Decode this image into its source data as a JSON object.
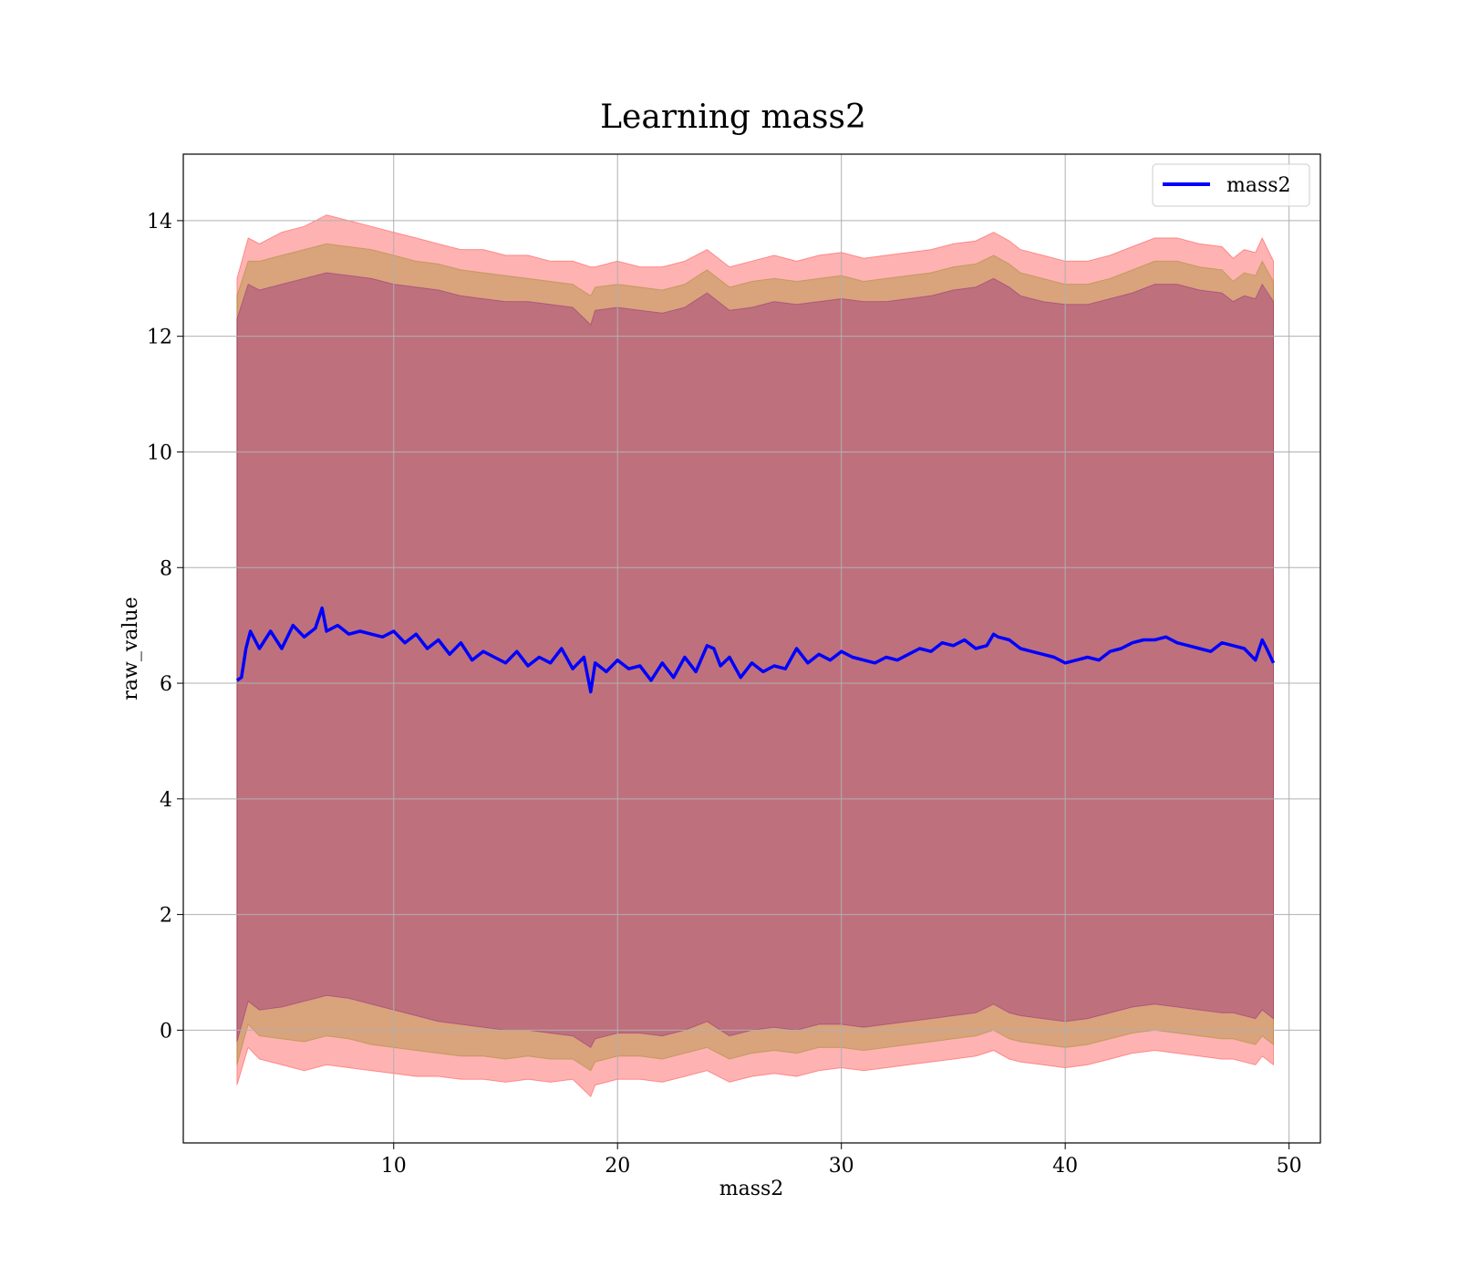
{
  "chart_data": {
    "type": "line",
    "title": "Learning mass2",
    "xlabel": "mass2",
    "ylabel": "raw_value",
    "xlim": [
      0.6,
      51.4
    ],
    "ylim": [
      -1.95,
      15.15
    ],
    "xticks": [
      10,
      20,
      30,
      40,
      50
    ],
    "yticks": [
      0,
      2,
      4,
      6,
      8,
      10,
      12,
      14
    ],
    "grid": true,
    "legend_position": "top-right",
    "series": [
      {
        "name": "mass2",
        "color": "#0000ff",
        "x": [
          3.0,
          3.2,
          3.4,
          3.6,
          4.0,
          4.5,
          5.0,
          5.5,
          6.0,
          6.5,
          6.8,
          7.0,
          7.5,
          8.0,
          8.5,
          9.0,
          9.5,
          10.0,
          10.5,
          11.0,
          11.5,
          12.0,
          12.5,
          13.0,
          13.5,
          14.0,
          14.5,
          15.0,
          15.5,
          16.0,
          16.5,
          17.0,
          17.5,
          18.0,
          18.5,
          18.8,
          19.0,
          19.5,
          20.0,
          20.5,
          21.0,
          21.5,
          22.0,
          22.5,
          23.0,
          23.5,
          24.0,
          24.3,
          24.6,
          25.0,
          25.5,
          26.0,
          26.5,
          27.0,
          27.5,
          28.0,
          28.5,
          29.0,
          29.5,
          30.0,
          30.5,
          31.0,
          31.5,
          32.0,
          32.5,
          33.0,
          33.5,
          34.0,
          34.5,
          35.0,
          35.5,
          36.0,
          36.5,
          36.8,
          37.0,
          37.5,
          38.0,
          38.5,
          39.0,
          39.5,
          40.0,
          40.5,
          41.0,
          41.5,
          42.0,
          42.5,
          43.0,
          43.5,
          44.0,
          44.5,
          45.0,
          45.5,
          46.0,
          46.5,
          47.0,
          47.5,
          48.0,
          48.5,
          48.8,
          49.0,
          49.3
        ],
        "y": [
          6.05,
          6.1,
          6.6,
          6.9,
          6.6,
          6.9,
          6.6,
          7.0,
          6.8,
          6.95,
          7.3,
          6.9,
          7.0,
          6.85,
          6.9,
          6.85,
          6.8,
          6.9,
          6.7,
          6.85,
          6.6,
          6.75,
          6.5,
          6.7,
          6.4,
          6.55,
          6.45,
          6.35,
          6.55,
          6.3,
          6.45,
          6.35,
          6.6,
          6.25,
          6.45,
          5.85,
          6.35,
          6.2,
          6.4,
          6.25,
          6.3,
          6.05,
          6.35,
          6.1,
          6.45,
          6.2,
          6.65,
          6.6,
          6.3,
          6.45,
          6.1,
          6.35,
          6.2,
          6.3,
          6.25,
          6.6,
          6.35,
          6.5,
          6.4,
          6.55,
          6.45,
          6.4,
          6.35,
          6.45,
          6.4,
          6.5,
          6.6,
          6.55,
          6.7,
          6.65,
          6.75,
          6.6,
          6.65,
          6.85,
          6.8,
          6.75,
          6.6,
          6.55,
          6.5,
          6.45,
          6.35,
          6.4,
          6.45,
          6.4,
          6.55,
          6.6,
          6.7,
          6.75,
          6.75,
          6.8,
          6.7,
          6.65,
          6.6,
          6.55,
          6.7,
          6.65,
          6.6,
          6.4,
          6.75,
          6.6,
          6.35
        ]
      }
    ],
    "bands": [
      {
        "color": "#ff0000",
        "opacity": 0.3,
        "x": [
          3.0,
          3.5,
          4.0,
          5.0,
          6.0,
          7.0,
          8.0,
          9.0,
          10.0,
          11.0,
          12.0,
          13.0,
          14.0,
          15.0,
          16.0,
          17.0,
          18.0,
          18.8,
          19.0,
          20.0,
          21.0,
          22.0,
          23.0,
          24.0,
          25.0,
          26.0,
          27.0,
          28.0,
          29.0,
          30.0,
          31.0,
          32.0,
          33.0,
          34.0,
          35.0,
          36.0,
          36.8,
          37.5,
          38.0,
          39.0,
          40.0,
          41.0,
          42.0,
          43.0,
          44.0,
          45.0,
          46.0,
          47.0,
          47.5,
          48.0,
          48.5,
          48.8,
          49.3
        ],
        "upper": [
          13.0,
          13.7,
          13.6,
          13.8,
          13.9,
          14.1,
          14.0,
          13.9,
          13.8,
          13.7,
          13.6,
          13.5,
          13.5,
          13.4,
          13.4,
          13.3,
          13.3,
          13.2,
          13.2,
          13.3,
          13.2,
          13.2,
          13.3,
          13.5,
          13.2,
          13.3,
          13.4,
          13.3,
          13.4,
          13.45,
          13.35,
          13.4,
          13.45,
          13.5,
          13.6,
          13.65,
          13.8,
          13.65,
          13.5,
          13.4,
          13.3,
          13.3,
          13.4,
          13.55,
          13.7,
          13.7,
          13.6,
          13.55,
          13.35,
          13.5,
          13.45,
          13.7,
          13.3
        ],
        "lower": [
          -0.95,
          -0.3,
          -0.5,
          -0.6,
          -0.7,
          -0.6,
          -0.65,
          -0.7,
          -0.75,
          -0.8,
          -0.8,
          -0.85,
          -0.85,
          -0.9,
          -0.85,
          -0.9,
          -0.85,
          -1.15,
          -0.95,
          -0.85,
          -0.85,
          -0.9,
          -0.8,
          -0.7,
          -0.9,
          -0.8,
          -0.75,
          -0.8,
          -0.7,
          -0.65,
          -0.7,
          -0.65,
          -0.6,
          -0.55,
          -0.5,
          -0.45,
          -0.35,
          -0.5,
          -0.55,
          -0.6,
          -0.65,
          -0.6,
          -0.5,
          -0.4,
          -0.35,
          -0.4,
          -0.45,
          -0.5,
          -0.5,
          -0.55,
          -0.6,
          -0.45,
          -0.6
        ]
      },
      {
        "color": "#808000",
        "opacity": 0.3,
        "x": [
          3.0,
          3.5,
          4.0,
          5.0,
          6.0,
          7.0,
          8.0,
          9.0,
          10.0,
          11.0,
          12.0,
          13.0,
          14.0,
          15.0,
          16.0,
          17.0,
          18.0,
          18.8,
          19.0,
          20.0,
          21.0,
          22.0,
          23.0,
          24.0,
          25.0,
          26.0,
          27.0,
          28.0,
          29.0,
          30.0,
          31.0,
          32.0,
          33.0,
          34.0,
          35.0,
          36.0,
          36.8,
          37.5,
          38.0,
          39.0,
          40.0,
          41.0,
          42.0,
          43.0,
          44.0,
          45.0,
          46.0,
          47.0,
          47.5,
          48.0,
          48.5,
          48.8,
          49.3
        ],
        "upper": [
          12.7,
          13.3,
          13.3,
          13.4,
          13.5,
          13.6,
          13.55,
          13.5,
          13.4,
          13.3,
          13.25,
          13.15,
          13.1,
          13.05,
          13.0,
          12.95,
          12.9,
          12.7,
          12.85,
          12.9,
          12.85,
          12.8,
          12.9,
          13.15,
          12.85,
          12.95,
          13.0,
          12.95,
          13.0,
          13.05,
          12.95,
          13.0,
          13.05,
          13.1,
          13.2,
          13.25,
          13.4,
          13.25,
          13.1,
          13.0,
          12.9,
          12.9,
          13.0,
          13.15,
          13.3,
          13.3,
          13.2,
          13.15,
          12.95,
          13.1,
          13.05,
          13.3,
          12.95
        ],
        "lower": [
          -0.6,
          0.1,
          -0.1,
          -0.15,
          -0.2,
          -0.1,
          -0.15,
          -0.25,
          -0.3,
          -0.35,
          -0.4,
          -0.45,
          -0.45,
          -0.5,
          -0.45,
          -0.5,
          -0.5,
          -0.7,
          -0.55,
          -0.45,
          -0.45,
          -0.5,
          -0.4,
          -0.3,
          -0.5,
          -0.4,
          -0.35,
          -0.4,
          -0.3,
          -0.3,
          -0.35,
          -0.3,
          -0.25,
          -0.2,
          -0.15,
          -0.1,
          0.0,
          -0.15,
          -0.2,
          -0.25,
          -0.3,
          -0.25,
          -0.15,
          -0.05,
          0.0,
          -0.05,
          -0.1,
          -0.15,
          -0.15,
          -0.2,
          -0.25,
          -0.1,
          -0.25
        ]
      },
      {
        "color": "#800080",
        "opacity": 0.3,
        "x": [
          3.0,
          3.5,
          4.0,
          5.0,
          6.0,
          7.0,
          8.0,
          9.0,
          10.0,
          11.0,
          12.0,
          13.0,
          14.0,
          15.0,
          16.0,
          17.0,
          18.0,
          18.8,
          19.0,
          20.0,
          21.0,
          22.0,
          23.0,
          24.0,
          25.0,
          26.0,
          27.0,
          28.0,
          29.0,
          30.0,
          31.0,
          32.0,
          33.0,
          34.0,
          35.0,
          36.0,
          36.8,
          37.5,
          38.0,
          39.0,
          40.0,
          41.0,
          42.0,
          43.0,
          44.0,
          45.0,
          46.0,
          47.0,
          47.5,
          48.0,
          48.5,
          48.8,
          49.3
        ],
        "upper": [
          12.3,
          12.9,
          12.8,
          12.9,
          13.0,
          13.1,
          13.05,
          13.0,
          12.9,
          12.85,
          12.8,
          12.7,
          12.65,
          12.6,
          12.6,
          12.55,
          12.5,
          12.2,
          12.45,
          12.5,
          12.45,
          12.4,
          12.5,
          12.75,
          12.45,
          12.5,
          12.6,
          12.55,
          12.6,
          12.65,
          12.6,
          12.6,
          12.65,
          12.7,
          12.8,
          12.85,
          13.0,
          12.85,
          12.7,
          12.6,
          12.55,
          12.55,
          12.65,
          12.75,
          12.9,
          12.9,
          12.8,
          12.75,
          12.6,
          12.7,
          12.65,
          12.9,
          12.6
        ],
        "lower": [
          -0.2,
          0.5,
          0.35,
          0.4,
          0.5,
          0.6,
          0.55,
          0.45,
          0.35,
          0.25,
          0.15,
          0.1,
          0.05,
          0.0,
          0.0,
          -0.05,
          -0.1,
          -0.3,
          -0.15,
          -0.05,
          -0.05,
          -0.1,
          0.0,
          0.15,
          -0.1,
          0.0,
          0.05,
          0.0,
          0.1,
          0.1,
          0.05,
          0.1,
          0.15,
          0.2,
          0.25,
          0.3,
          0.45,
          0.3,
          0.25,
          0.2,
          0.15,
          0.2,
          0.3,
          0.4,
          0.45,
          0.4,
          0.35,
          0.3,
          0.3,
          0.25,
          0.2,
          0.35,
          0.2
        ]
      }
    ]
  }
}
